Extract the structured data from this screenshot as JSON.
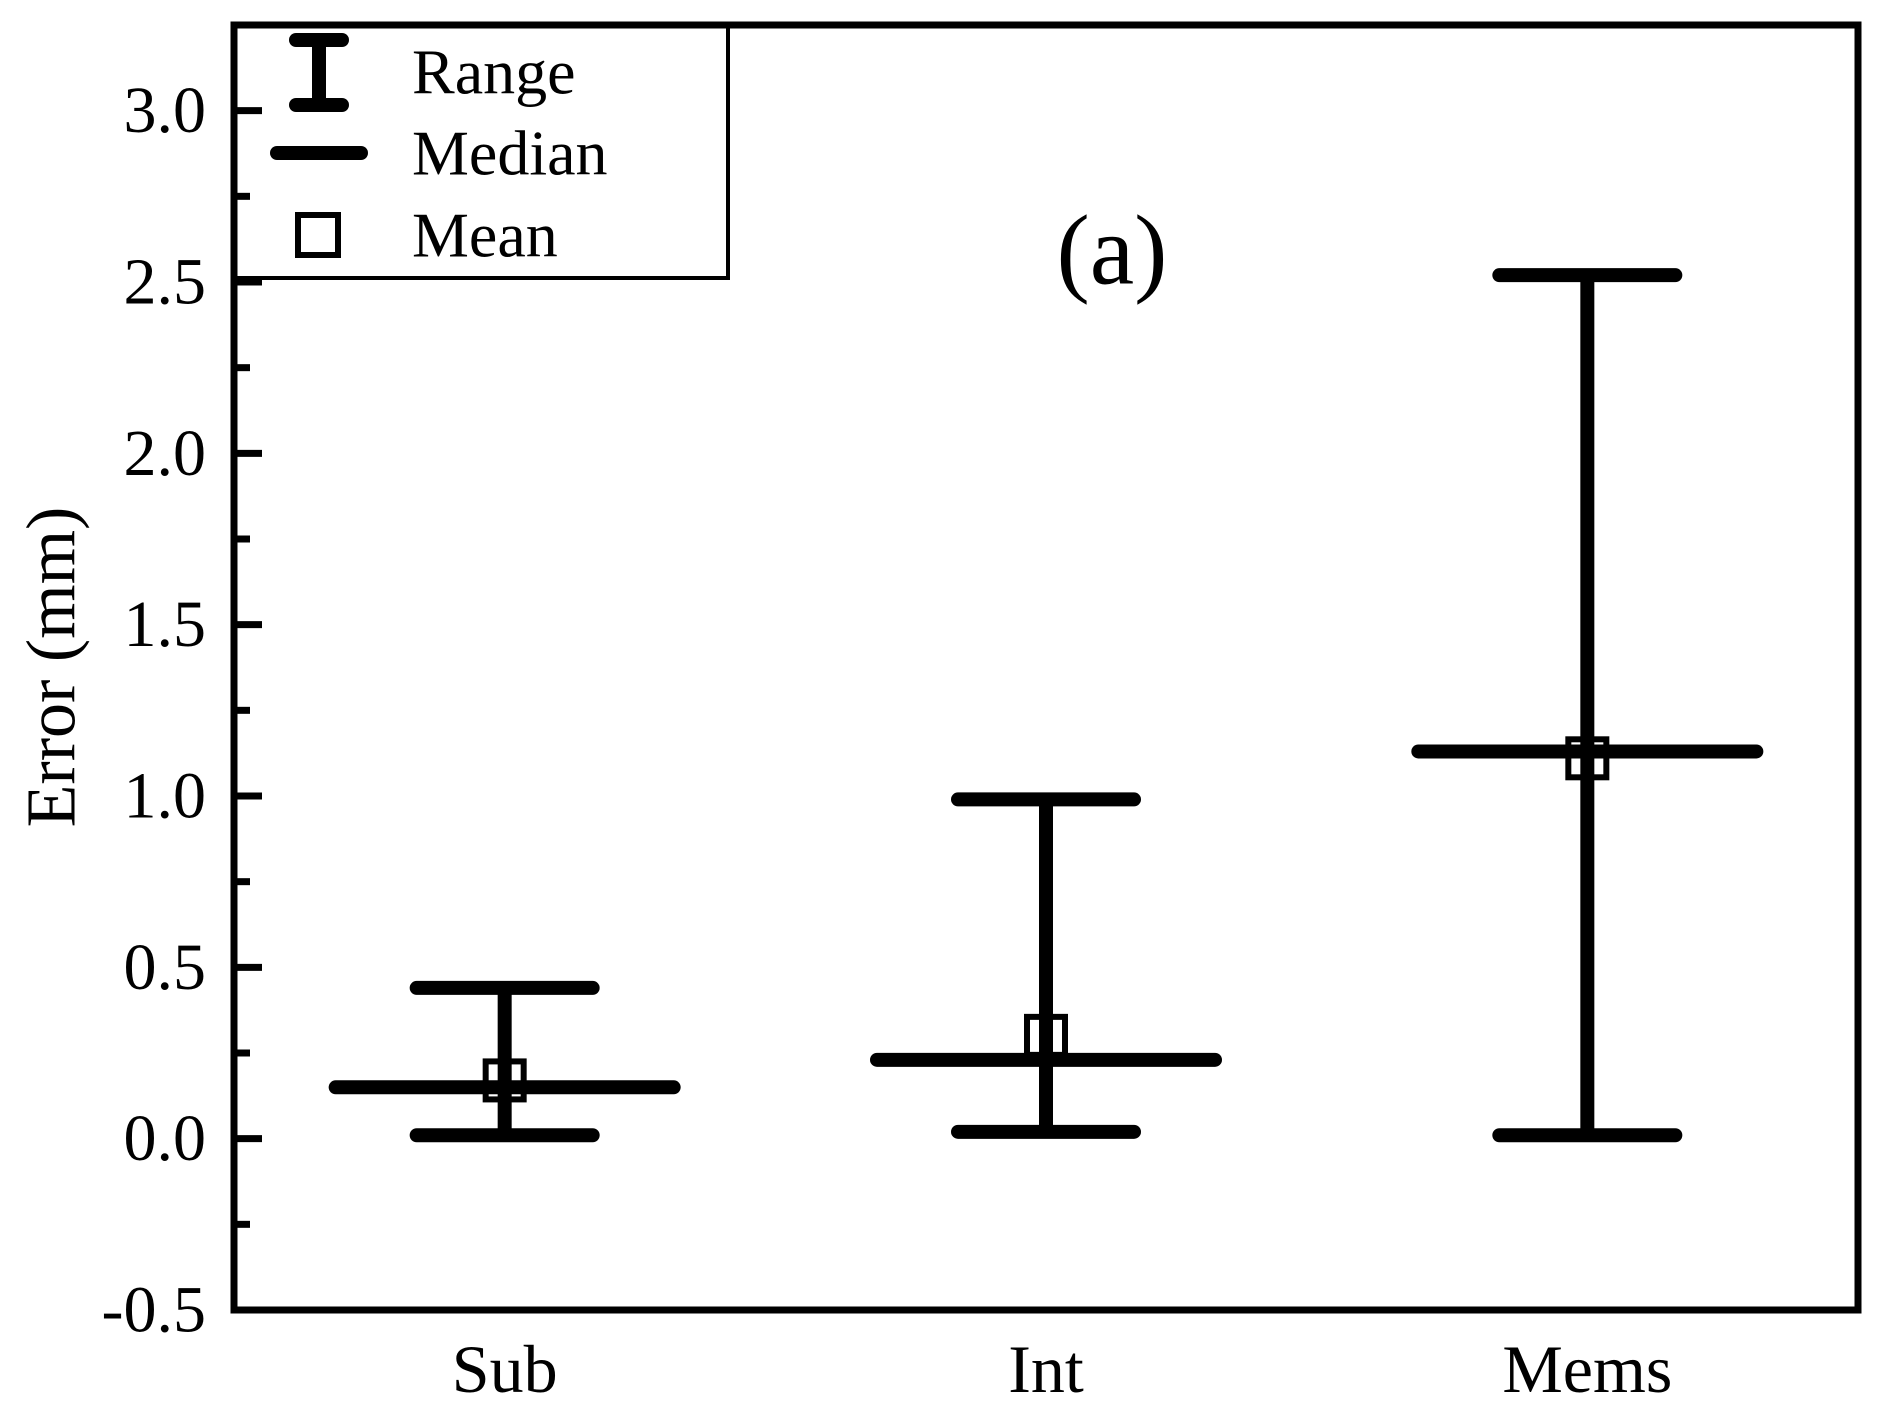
{
  "figure": {
    "annotation": "(a)",
    "background": "#ffffff",
    "foreground": "#000000",
    "y_axis": {
      "label": "Error (mm)",
      "tick_labels": [
        "3.0",
        "2.5",
        "2.0",
        "1.5",
        "1.0",
        "0.5",
        "0.0",
        "-0.5"
      ],
      "minor_tick_step": 0.25
    },
    "x_axis": {
      "categories": [
        "Sub",
        "Int",
        "Mems"
      ]
    },
    "legend": {
      "items": [
        {
          "symbol": "range-errorbar",
          "label": "Range"
        },
        {
          "symbol": "median-line",
          "label": "Median"
        },
        {
          "symbol": "mean-square",
          "label": "Mean"
        }
      ]
    }
  },
  "chart_data": {
    "type": "bar",
    "subtype": "range-whisker-plot",
    "title": "",
    "xlabel": "",
    "ylabel": "Error (mm)",
    "categories": [
      "Sub",
      "Int",
      "Mems"
    ],
    "ylim": [
      -0.5,
      3.25
    ],
    "grid": false,
    "legend_position": "top-left",
    "legend_entries": [
      "Range",
      "Median",
      "Mean"
    ],
    "annotation": "(a)",
    "series": [
      {
        "name": "Sub",
        "min": 0.01,
        "max": 0.44,
        "median": 0.15,
        "mean": 0.17
      },
      {
        "name": "Int",
        "min": 0.02,
        "max": 0.99,
        "median": 0.23,
        "mean": 0.3
      },
      {
        "name": "Mems",
        "min": 0.01,
        "max": 2.52,
        "median": 1.13,
        "mean": 1.11
      }
    ]
  }
}
